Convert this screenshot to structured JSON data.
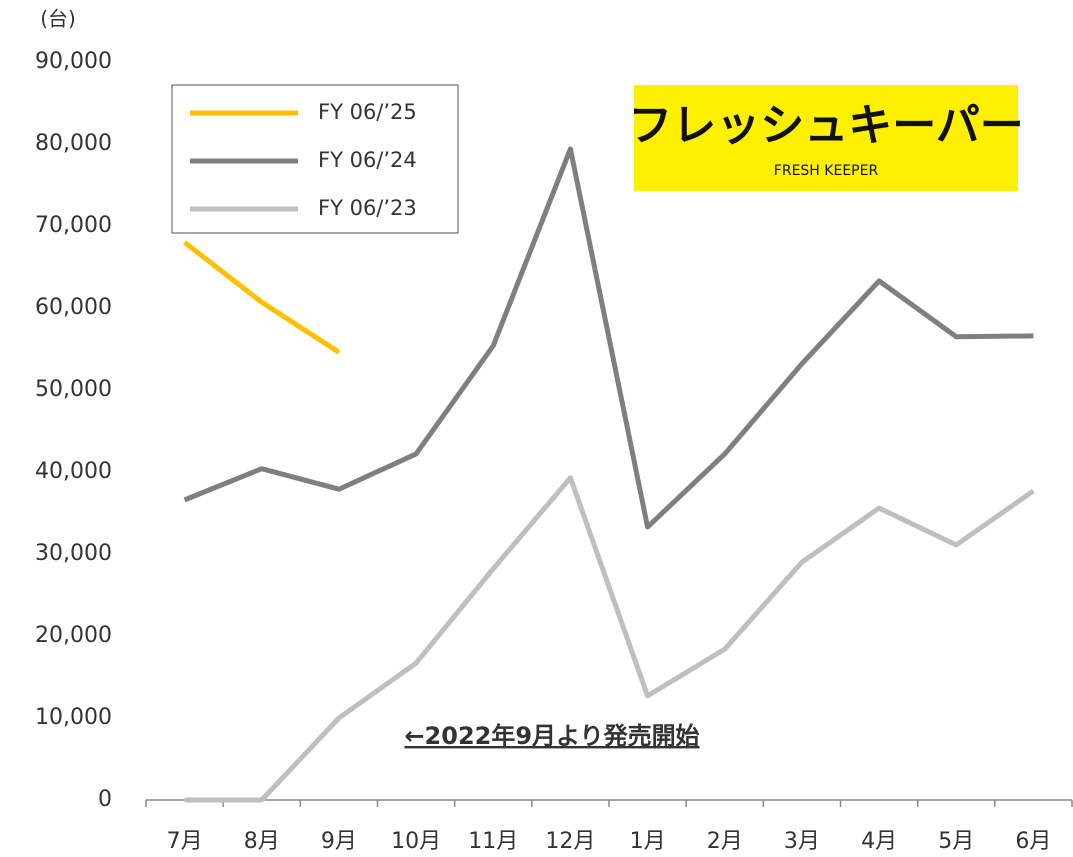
{
  "chart_data": {
    "type": "line",
    "unit_label": "(台)",
    "annotation": "←2022年9月より発売開始",
    "logo": {
      "title": "フレッシュキーパー",
      "subtitle": "FRESH KEEPER"
    },
    "categories": [
      "7月",
      "8月",
      "9月",
      "10月",
      "11月",
      "12月",
      "1月",
      "2月",
      "3月",
      "4月",
      "5月",
      "6月"
    ],
    "series": [
      {
        "name": "FY 06/’25",
        "color": "#FFC000",
        "values": [
          68000,
          60700,
          54600,
          null,
          null,
          null,
          null,
          null,
          null,
          null,
          null,
          null
        ]
      },
      {
        "name": "FY 06/’24",
        "color": "#7F7F7F",
        "values": [
          36600,
          40400,
          37900,
          42200,
          55400,
          79400,
          33300,
          42200,
          53200,
          63300,
          56500,
          56600
        ]
      },
      {
        "name": "FY 06/’23",
        "color": "#BFBFBF",
        "values": [
          0,
          0,
          10000,
          16700,
          28200,
          39300,
          12700,
          18400,
          29000,
          35600,
          31100,
          37700
        ]
      }
    ],
    "ylim": [
      0,
      90000
    ],
    "yticks": [
      0,
      {
        "value": 10000,
        "label": "10,000"
      },
      {
        "value": 20000,
        "label": "20,000"
      },
      {
        "value": 30000,
        "label": "30,000"
      },
      {
        "value": 40000,
        "label": "40,000"
      },
      {
        "value": 50000,
        "label": "50,000"
      },
      {
        "value": 60000,
        "label": "60,000"
      },
      {
        "value": 70000,
        "label": "70,000"
      },
      {
        "value": 80000,
        "label": "80,000"
      },
      {
        "value": 90000,
        "label": "90,000"
      }
    ],
    "grid": false,
    "legend": "top-left"
  }
}
